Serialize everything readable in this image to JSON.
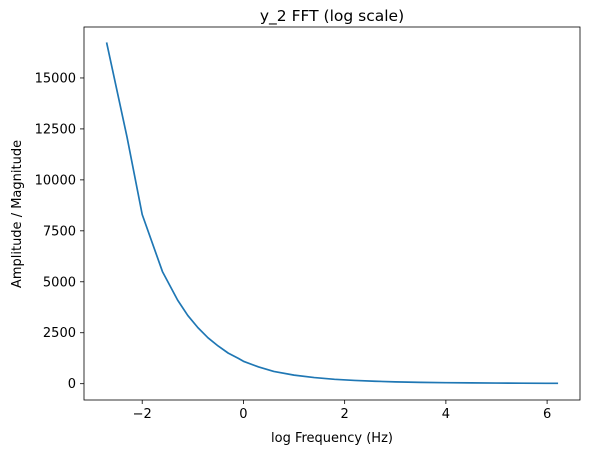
{
  "chart_data": {
    "type": "line",
    "title": "y_2 FFT (log scale)",
    "xlabel": "log Frequency (Hz)",
    "ylabel": "Amplitude / Magnitude",
    "xlim": [
      -3.15,
      6.65
    ],
    "ylim": [
      -800,
      17500
    ],
    "xticks": [
      -2,
      0,
      2,
      4,
      6
    ],
    "xtick_labels": [
      "−2",
      "0",
      "2",
      "4",
      "6"
    ],
    "yticks": [
      0,
      2500,
      5000,
      7500,
      10000,
      12500,
      15000
    ],
    "ytick_labels": [
      "0",
      "2500",
      "5000",
      "7500",
      "10000",
      "12500",
      "15000"
    ],
    "grid": false,
    "series": [
      {
        "color": "#1f77b4",
        "x": [
          -2.7,
          -2.3,
          -2.0,
          -1.6,
          -1.3,
          -1.1,
          -0.9,
          -0.7,
          -0.5,
          -0.3,
          -0.1,
          0.0,
          0.3,
          0.6,
          1.0,
          1.4,
          1.8,
          2.2,
          2.6,
          3.0,
          3.5,
          4.0,
          4.5,
          5.0,
          5.5,
          6.0,
          6.2
        ],
        "y": [
          16700,
          12100,
          8300,
          5500,
          4100,
          3350,
          2750,
          2250,
          1850,
          1500,
          1240,
          1100,
          820,
          600,
          420,
          300,
          215,
          160,
          120,
          90,
          65,
          50,
          40,
          30,
          25,
          20,
          18
        ]
      }
    ]
  }
}
